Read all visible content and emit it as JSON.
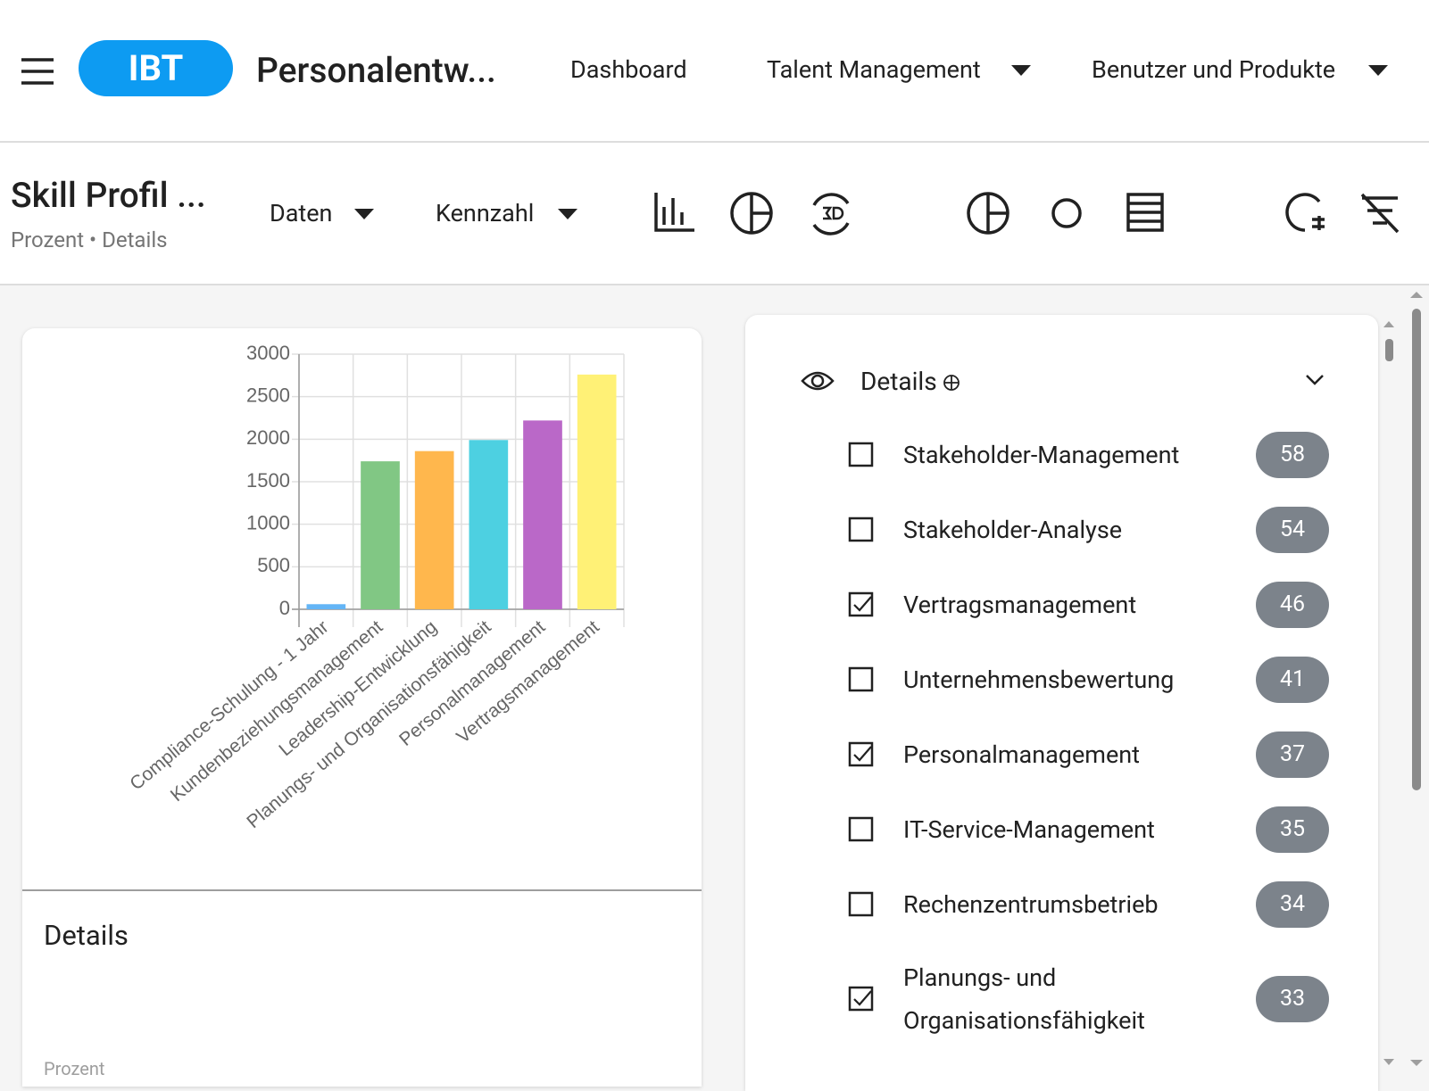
{
  "header": {
    "logo": "IBT",
    "app_title": "Personalentw...",
    "nav": [
      "Dashboard",
      "Talent Management",
      "Benutzer und Produkte"
    ]
  },
  "toolbar": {
    "title": "Skill Profil ...",
    "subtitle": "Prozent • Details",
    "dropdowns": [
      "Daten",
      "Kennzahl"
    ]
  },
  "chart_data": {
    "type": "bar",
    "categories": [
      "Compliance-Schulung - 1 Jahr",
      "Kundenbeziehungsmanagement",
      "Leadership-Entwicklung",
      "Planungs- und Organisationsfähigkeit",
      "Personalmanagement",
      "Vertragsmanagement"
    ],
    "values": [
      60,
      1740,
      1860,
      1990,
      2220,
      2760
    ],
    "colors": [
      "#64b5f6",
      "#81c784",
      "#ffb74d",
      "#4dd0e1",
      "#ba68c8",
      "#fff176"
    ],
    "ylim": [
      0,
      3000
    ],
    "yticks": [
      0,
      500,
      1000,
      1500,
      2000,
      2500,
      3000
    ],
    "grid": true
  },
  "details_card": {
    "title": "Details",
    "footer": "Prozent"
  },
  "filter_panel": {
    "title": "Details",
    "items": [
      {
        "label": "Stakeholder-Management",
        "count": 58,
        "checked": false
      },
      {
        "label": "Stakeholder-Analyse",
        "count": 54,
        "checked": false
      },
      {
        "label": "Vertragsmanagement",
        "count": 46,
        "checked": true
      },
      {
        "label": "Unternehmensbewertung",
        "count": 41,
        "checked": false
      },
      {
        "label": "Personalmanagement",
        "count": 37,
        "checked": true
      },
      {
        "label": "IT-Service-Management",
        "count": 35,
        "checked": false
      },
      {
        "label": "Rechenzentrumsbetrieb",
        "count": 34,
        "checked": false
      },
      {
        "label": "Planungs- und Organisationsfähigkeit",
        "count": 33,
        "checked": true
      }
    ]
  }
}
